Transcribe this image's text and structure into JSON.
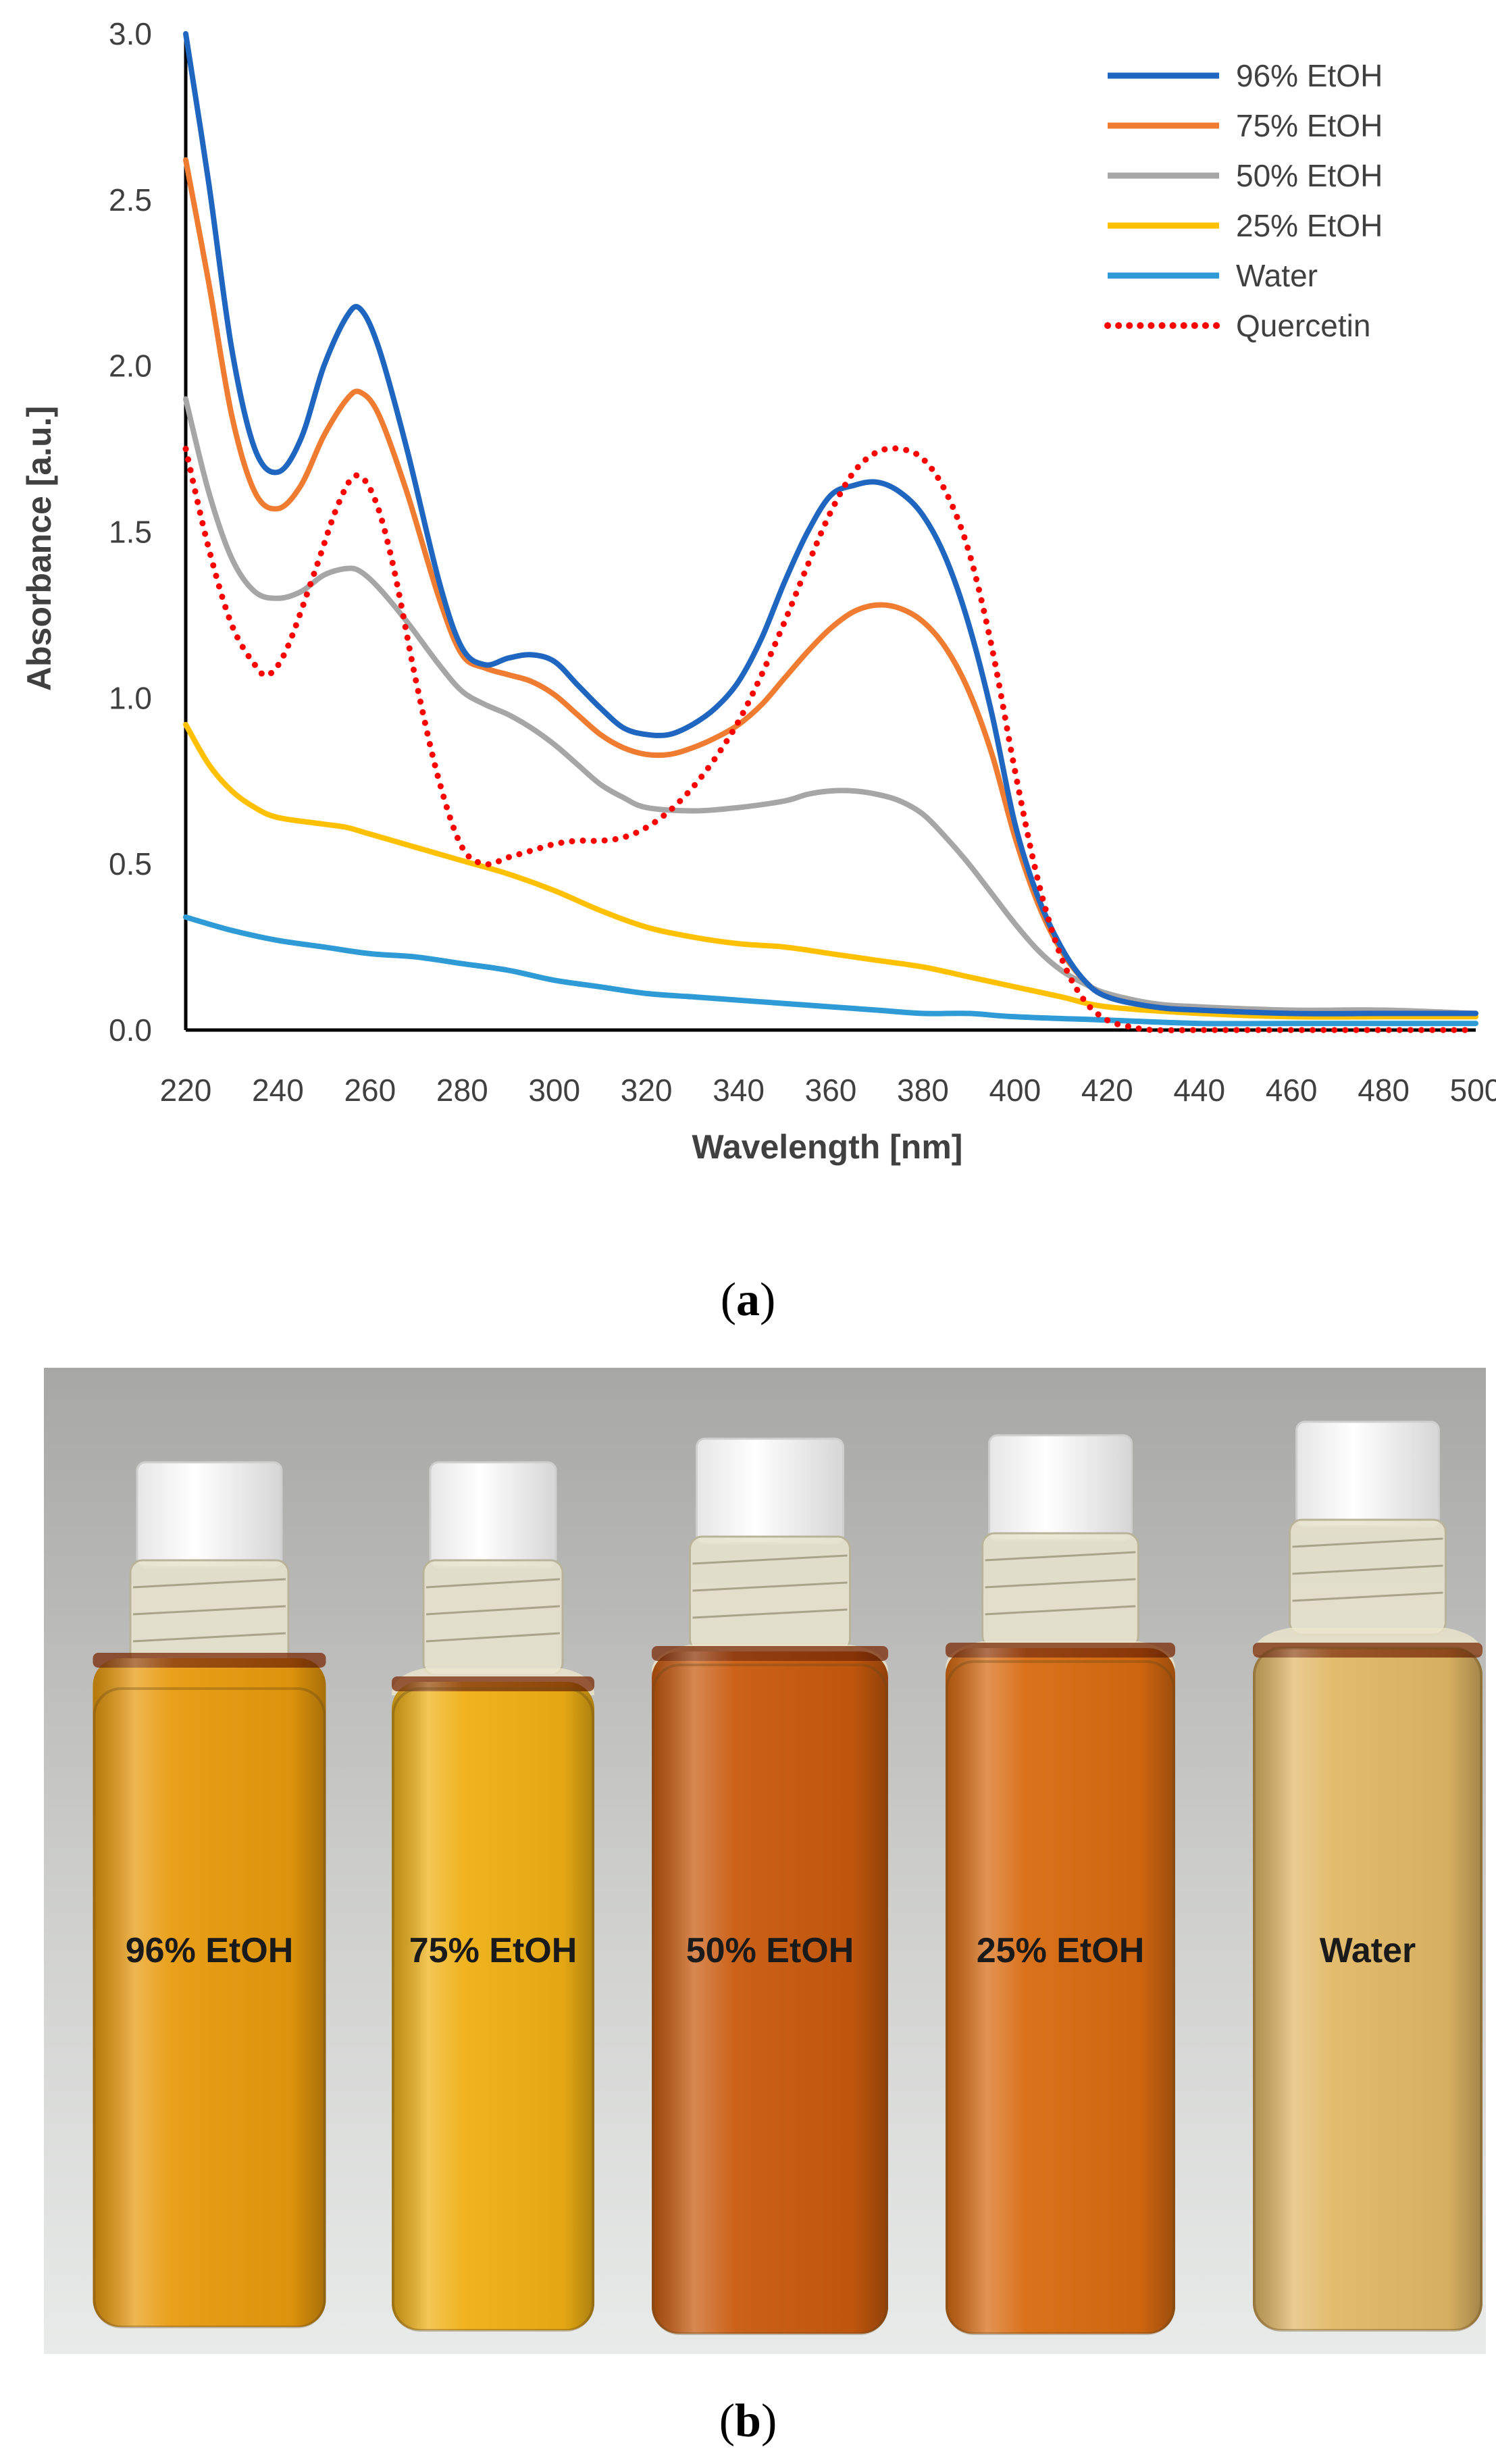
{
  "chart_data": {
    "type": "line",
    "title": "",
    "xlabel": "Wavelength [nm]",
    "ylabel": "Absorbance [a.u.]",
    "xlim": [
      220,
      500
    ],
    "ylim": [
      0.0,
      3.0
    ],
    "xticks": [
      220,
      240,
      260,
      280,
      300,
      320,
      340,
      360,
      380,
      400,
      420,
      440,
      460,
      480,
      500
    ],
    "yticks": [
      0.0,
      0.5,
      1.0,
      1.5,
      2.0,
      2.5,
      3.0
    ],
    "ytick_labels": [
      "0.0",
      "0.5",
      "1.0",
      "1.5",
      "2.0",
      "2.5",
      "3.0"
    ],
    "grid": false,
    "legend_position": "top-right",
    "series": [
      {
        "name": "96% EtOH",
        "color": "#1f66c0",
        "dash": "solid",
        "points": [
          [
            220,
            3.0
          ],
          [
            225,
            2.55
          ],
          [
            230,
            2.05
          ],
          [
            235,
            1.75
          ],
          [
            240,
            1.68
          ],
          [
            245,
            1.78
          ],
          [
            250,
            2.0
          ],
          [
            255,
            2.15
          ],
          [
            258,
            2.17
          ],
          [
            262,
            2.05
          ],
          [
            268,
            1.75
          ],
          [
            275,
            1.35
          ],
          [
            280,
            1.15
          ],
          [
            285,
            1.1
          ],
          [
            290,
            1.12
          ],
          [
            295,
            1.13
          ],
          [
            300,
            1.11
          ],
          [
            305,
            1.04
          ],
          [
            310,
            0.97
          ],
          [
            315,
            0.91
          ],
          [
            320,
            0.89
          ],
          [
            325,
            0.89
          ],
          [
            330,
            0.92
          ],
          [
            335,
            0.97
          ],
          [
            340,
            1.05
          ],
          [
            345,
            1.18
          ],
          [
            350,
            1.35
          ],
          [
            355,
            1.5
          ],
          [
            360,
            1.61
          ],
          [
            365,
            1.64
          ],
          [
            370,
            1.65
          ],
          [
            375,
            1.62
          ],
          [
            380,
            1.55
          ],
          [
            385,
            1.42
          ],
          [
            390,
            1.22
          ],
          [
            395,
            0.95
          ],
          [
            400,
            0.62
          ],
          [
            405,
            0.4
          ],
          [
            410,
            0.25
          ],
          [
            415,
            0.15
          ],
          [
            420,
            0.1
          ],
          [
            430,
            0.07
          ],
          [
            440,
            0.06
          ],
          [
            460,
            0.05
          ],
          [
            480,
            0.05
          ],
          [
            500,
            0.05
          ]
        ]
      },
      {
        "name": "75% EtOH",
        "color": "#f07c31",
        "dash": "solid",
        "points": [
          [
            220,
            2.62
          ],
          [
            225,
            2.25
          ],
          [
            230,
            1.85
          ],
          [
            235,
            1.62
          ],
          [
            240,
            1.57
          ],
          [
            245,
            1.64
          ],
          [
            250,
            1.79
          ],
          [
            255,
            1.9
          ],
          [
            258,
            1.92
          ],
          [
            262,
            1.85
          ],
          [
            268,
            1.62
          ],
          [
            275,
            1.3
          ],
          [
            280,
            1.13
          ],
          [
            285,
            1.09
          ],
          [
            290,
            1.07
          ],
          [
            295,
            1.05
          ],
          [
            300,
            1.01
          ],
          [
            305,
            0.95
          ],
          [
            310,
            0.89
          ],
          [
            315,
            0.85
          ],
          [
            320,
            0.83
          ],
          [
            325,
            0.83
          ],
          [
            330,
            0.85
          ],
          [
            335,
            0.88
          ],
          [
            340,
            0.92
          ],
          [
            345,
            0.98
          ],
          [
            350,
            1.06
          ],
          [
            355,
            1.14
          ],
          [
            360,
            1.21
          ],
          [
            365,
            1.26
          ],
          [
            370,
            1.28
          ],
          [
            375,
            1.27
          ],
          [
            380,
            1.23
          ],
          [
            385,
            1.15
          ],
          [
            390,
            1.02
          ],
          [
            395,
            0.83
          ],
          [
            400,
            0.58
          ],
          [
            405,
            0.38
          ],
          [
            410,
            0.24
          ],
          [
            415,
            0.15
          ],
          [
            420,
            0.1
          ],
          [
            430,
            0.07
          ],
          [
            440,
            0.06
          ],
          [
            460,
            0.05
          ],
          [
            480,
            0.05
          ],
          [
            500,
            0.05
          ]
        ]
      },
      {
        "name": "50% EtOH",
        "color": "#a6a6a6",
        "dash": "solid",
        "points": [
          [
            220,
            1.9
          ],
          [
            225,
            1.62
          ],
          [
            230,
            1.42
          ],
          [
            235,
            1.32
          ],
          [
            240,
            1.3
          ],
          [
            245,
            1.32
          ],
          [
            250,
            1.37
          ],
          [
            255,
            1.39
          ],
          [
            258,
            1.38
          ],
          [
            262,
            1.33
          ],
          [
            268,
            1.23
          ],
          [
            275,
            1.1
          ],
          [
            280,
            1.02
          ],
          [
            285,
            0.98
          ],
          [
            290,
            0.95
          ],
          [
            295,
            0.91
          ],
          [
            300,
            0.86
          ],
          [
            305,
            0.8
          ],
          [
            310,
            0.74
          ],
          [
            315,
            0.7
          ],
          [
            320,
            0.67
          ],
          [
            330,
            0.66
          ],
          [
            340,
            0.67
          ],
          [
            350,
            0.69
          ],
          [
            355,
            0.71
          ],
          [
            360,
            0.72
          ],
          [
            365,
            0.72
          ],
          [
            370,
            0.71
          ],
          [
            375,
            0.69
          ],
          [
            380,
            0.65
          ],
          [
            385,
            0.58
          ],
          [
            390,
            0.5
          ],
          [
            395,
            0.41
          ],
          [
            400,
            0.32
          ],
          [
            405,
            0.24
          ],
          [
            410,
            0.18
          ],
          [
            415,
            0.14
          ],
          [
            420,
            0.11
          ],
          [
            430,
            0.08
          ],
          [
            440,
            0.07
          ],
          [
            460,
            0.06
          ],
          [
            480,
            0.06
          ],
          [
            500,
            0.05
          ]
        ]
      },
      {
        "name": "25% EtOH",
        "color": "#ffc000",
        "dash": "solid",
        "points": [
          [
            220,
            0.92
          ],
          [
            225,
            0.8
          ],
          [
            230,
            0.72
          ],
          [
            235,
            0.67
          ],
          [
            240,
            0.64
          ],
          [
            250,
            0.62
          ],
          [
            255,
            0.61
          ],
          [
            260,
            0.59
          ],
          [
            270,
            0.55
          ],
          [
            280,
            0.51
          ],
          [
            290,
            0.47
          ],
          [
            300,
            0.42
          ],
          [
            310,
            0.36
          ],
          [
            320,
            0.31
          ],
          [
            330,
            0.28
          ],
          [
            340,
            0.26
          ],
          [
            350,
            0.25
          ],
          [
            360,
            0.23
          ],
          [
            370,
            0.21
          ],
          [
            380,
            0.19
          ],
          [
            390,
            0.16
          ],
          [
            400,
            0.13
          ],
          [
            410,
            0.1
          ],
          [
            420,
            0.07
          ],
          [
            440,
            0.05
          ],
          [
            460,
            0.04
          ],
          [
            480,
            0.04
          ],
          [
            500,
            0.04
          ]
        ]
      },
      {
        "name": "Water",
        "color": "#2e9bd6",
        "dash": "solid",
        "points": [
          [
            220,
            0.34
          ],
          [
            230,
            0.3
          ],
          [
            240,
            0.27
          ],
          [
            250,
            0.25
          ],
          [
            260,
            0.23
          ],
          [
            270,
            0.22
          ],
          [
            280,
            0.2
          ],
          [
            290,
            0.18
          ],
          [
            300,
            0.15
          ],
          [
            310,
            0.13
          ],
          [
            320,
            0.11
          ],
          [
            330,
            0.1
          ],
          [
            340,
            0.09
          ],
          [
            350,
            0.08
          ],
          [
            360,
            0.07
          ],
          [
            370,
            0.06
          ],
          [
            380,
            0.05
          ],
          [
            390,
            0.05
          ],
          [
            400,
            0.04
          ],
          [
            420,
            0.03
          ],
          [
            440,
            0.02
          ],
          [
            460,
            0.02
          ],
          [
            480,
            0.02
          ],
          [
            500,
            0.02
          ]
        ]
      },
      {
        "name": "Quercetin",
        "color": "#ff0000",
        "dash": "dotted",
        "points": [
          [
            220,
            1.75
          ],
          [
            225,
            1.45
          ],
          [
            230,
            1.22
          ],
          [
            235,
            1.1
          ],
          [
            238,
            1.07
          ],
          [
            242,
            1.15
          ],
          [
            248,
            1.38
          ],
          [
            253,
            1.58
          ],
          [
            257,
            1.67
          ],
          [
            261,
            1.6
          ],
          [
            265,
            1.4
          ],
          [
            270,
            1.05
          ],
          [
            275,
            0.75
          ],
          [
            280,
            0.55
          ],
          [
            285,
            0.5
          ],
          [
            290,
            0.52
          ],
          [
            295,
            0.54
          ],
          [
            300,
            0.56
          ],
          [
            305,
            0.57
          ],
          [
            310,
            0.57
          ],
          [
            315,
            0.58
          ],
          [
            320,
            0.61
          ],
          [
            325,
            0.66
          ],
          [
            330,
            0.73
          ],
          [
            335,
            0.82
          ],
          [
            340,
            0.93
          ],
          [
            345,
            1.07
          ],
          [
            350,
            1.23
          ],
          [
            355,
            1.4
          ],
          [
            360,
            1.56
          ],
          [
            365,
            1.68
          ],
          [
            370,
            1.74
          ],
          [
            375,
            1.75
          ],
          [
            380,
            1.72
          ],
          [
            385,
            1.62
          ],
          [
            390,
            1.44
          ],
          [
            395,
            1.15
          ],
          [
            400,
            0.78
          ],
          [
            405,
            0.45
          ],
          [
            410,
            0.22
          ],
          [
            415,
            0.09
          ],
          [
            420,
            0.03
          ],
          [
            425,
            0.01
          ],
          [
            430,
            0.0
          ],
          [
            440,
            0.0
          ],
          [
            460,
            0.0
          ],
          [
            480,
            0.0
          ],
          [
            500,
            0.0
          ]
        ]
      }
    ]
  },
  "figure": {
    "label_a_paren_open": "(",
    "label_a": "a",
    "label_a_paren_close": ")",
    "label_b_paren_open": "(",
    "label_b": "b",
    "label_b_paren_close": ")"
  },
  "photo": {
    "vials": [
      {
        "label": "96% EtOH",
        "liquid_color": "#e89a0c"
      },
      {
        "label": "75% EtOH",
        "liquid_color": "#efb014"
      },
      {
        "label": "50% EtOH",
        "liquid_color": "#c95a0e"
      },
      {
        "label": "25% EtOH",
        "liquid_color": "#d86a10"
      },
      {
        "label": "Water",
        "liquid_color": "#e2b866"
      }
    ]
  }
}
